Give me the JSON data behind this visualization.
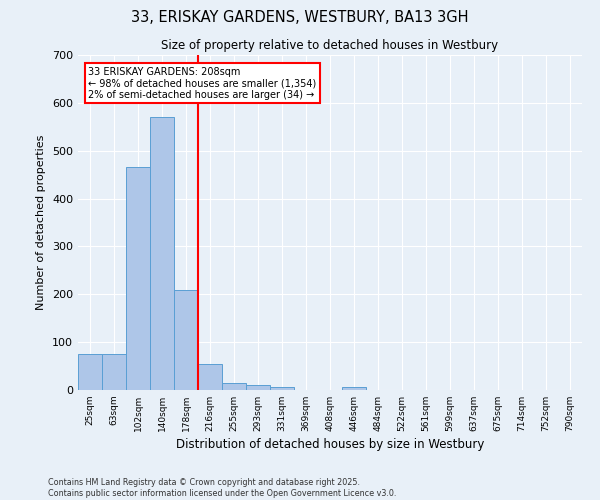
{
  "title": "33, ERISKAY GARDENS, WESTBURY, BA13 3GH",
  "subtitle": "Size of property relative to detached houses in Westbury",
  "xlabel": "Distribution of detached houses by size in Westbury",
  "ylabel": "Number of detached properties",
  "footer_line1": "Contains HM Land Registry data © Crown copyright and database right 2025.",
  "footer_line2": "Contains public sector information licensed under the Open Government Licence v3.0.",
  "categories": [
    "25sqm",
    "63sqm",
    "102sqm",
    "140sqm",
    "178sqm",
    "216sqm",
    "255sqm",
    "293sqm",
    "331sqm",
    "369sqm",
    "408sqm",
    "446sqm",
    "484sqm",
    "522sqm",
    "561sqm",
    "599sqm",
    "637sqm",
    "675sqm",
    "714sqm",
    "752sqm",
    "790sqm"
  ],
  "values": [
    75,
    75,
    465,
    570,
    208,
    55,
    15,
    10,
    7,
    0,
    0,
    7,
    0,
    0,
    0,
    0,
    0,
    0,
    0,
    0,
    0
  ],
  "bar_color": "#aec6e8",
  "bar_edge_color": "#5a9fd4",
  "background_color": "#e8f0f8",
  "red_line_x": 4.5,
  "annotation_text": "33 ERISKAY GARDENS: 208sqm\n← 98% of detached houses are smaller (1,354)\n2% of semi-detached houses are larger (34) →",
  "annotation_box_color": "white",
  "annotation_box_edge": "red",
  "ylim": [
    0,
    700
  ],
  "yticks": [
    0,
    100,
    200,
    300,
    400,
    500,
    600,
    700
  ]
}
